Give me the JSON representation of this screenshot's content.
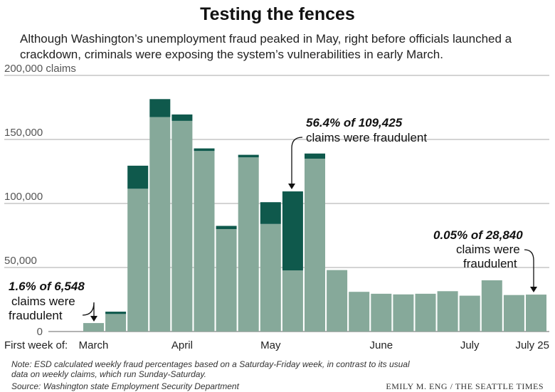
{
  "title": "Testing the fences",
  "subtitle": "Although Washington’s unemployment fraud peaked in May, right before officials launched a crackdown, criminals were exposing the system’s vulnerabilities in early March.",
  "note": "Note: ESD calculated weekly fraud percentages based on a Saturday-Friday week, in contrast to its usual data on weekly claims, which run Sunday-Saturday.",
  "source": "Source: Washington state Employment Security Department",
  "credit": "EMILY M. ENG / THE SEATTLE TIMES",
  "colors": {
    "legit": "#86a99a",
    "fraud": "#0f594c",
    "grid": "#aaaaaa",
    "text": "#222222"
  },
  "chart_data": {
    "type": "bar",
    "stacked": true,
    "ylim": [
      0,
      200000
    ],
    "yticks": [
      {
        "value": 0,
        "label": "0"
      },
      {
        "value": 50000,
        "label": "50,000"
      },
      {
        "value": 100000,
        "label": "100,000"
      },
      {
        "value": 150000,
        "label": "150,000"
      },
      {
        "value": 200000,
        "label": "200,000 claims"
      }
    ],
    "xlabel": "First week of:",
    "xtick_labels": [
      {
        "label": "March",
        "week_index": 0
      },
      {
        "label": "April",
        "week_index": 4
      },
      {
        "label": "May",
        "week_index": 8
      },
      {
        "label": "June",
        "week_index": 13
      },
      {
        "label": "July",
        "week_index": 17
      },
      {
        "label": "July 25",
        "week_index": 20
      }
    ],
    "series": [
      {
        "key": "legit",
        "values": [
          6443,
          13700,
          111500,
          167500,
          164500,
          141000,
          80000,
          136000,
          84000,
          47700,
          135000,
          48000,
          31000,
          29500,
          29000,
          29500,
          31500,
          28000,
          40000,
          28500,
          28826
        ]
      },
      {
        "key": "fraud",
        "values": [
          105,
          1800,
          18000,
          14000,
          5000,
          2000,
          2500,
          2000,
          17000,
          61725,
          4000,
          0,
          0,
          0,
          0,
          0,
          0,
          0,
          0,
          0,
          14
        ]
      }
    ],
    "annotations": [
      {
        "bold": "1.6% of 6,548",
        "lines": [
          "claims were",
          "fraudulent"
        ],
        "week_index": 0
      },
      {
        "bold": "56.4% of 109,425",
        "lines": [
          "claims were fraudulent"
        ],
        "week_index": 9
      },
      {
        "bold": "0.05% of 28,840",
        "lines": [
          "claims were",
          "fraudulent"
        ],
        "week_index": 20
      }
    ]
  }
}
